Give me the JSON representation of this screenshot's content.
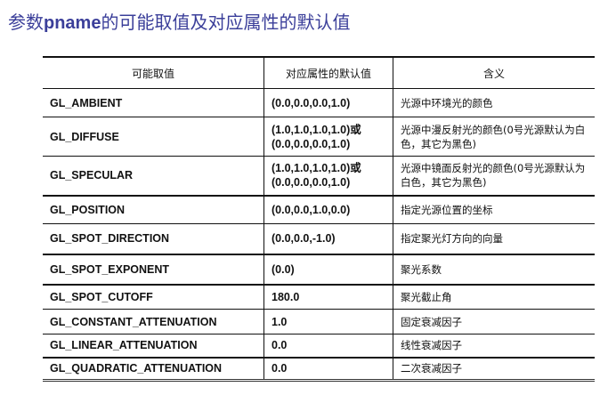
{
  "title": {
    "prefix": "参数",
    "keyword": "pname",
    "suffix": "的可能取值及对应属性的默认值"
  },
  "table": {
    "headers": [
      "可能取值",
      "对应属性的默认值",
      "含义"
    ],
    "rows": [
      {
        "name": "GL_AMBIENT",
        "default": "(0.0,0.0,0.0,1.0)",
        "meaning": "光源中环境光的颜色"
      },
      {
        "name": "GL_DIFFUSE",
        "default": "(1.0,1.0,1.0,1.0)或(0.0,0.0,0.0,1.0)",
        "meaning": "光源中漫反射光的颜色(0号光源默认为白色，其它为黑色)"
      },
      {
        "name": "GL_SPECULAR",
        "default": "(1.0,1.0,1.0,1.0)或(0.0,0.0,0.0,1.0)",
        "meaning": "光源中镜面反射光的颜色(0号光源默认为白色，其它为黑色)"
      },
      {
        "name": "GL_POSITION",
        "default": "(0.0,0.0,1.0,0.0)",
        "meaning": "指定光源位置的坐标"
      },
      {
        "name": "GL_SPOT_DIRECTION",
        "default": "(0.0,0.0,-1.0)",
        "meaning": "指定聚光灯方向的向量"
      },
      {
        "name": "GL_SPOT_EXPONENT",
        "default": "(0.0)",
        "meaning": "聚光系数"
      },
      {
        "name": "GL_SPOT_CUTOFF",
        "default": "180.0",
        "meaning": "聚光截止角"
      },
      {
        "name": "GL_CONSTANT_ATTENUATION",
        "default": "1.0",
        "meaning": "固定衰减因子"
      },
      {
        "name": "GL_LINEAR_ATTENUATION",
        "default": "0.0",
        "meaning": "线性衰减因子"
      },
      {
        "name": "GL_QUADRATIC_ATTENUATION",
        "default": "0.0",
        "meaning": "二次衰减因子"
      }
    ]
  },
  "colors": {
    "title": "#3b3f9a",
    "text": "#111111"
  }
}
